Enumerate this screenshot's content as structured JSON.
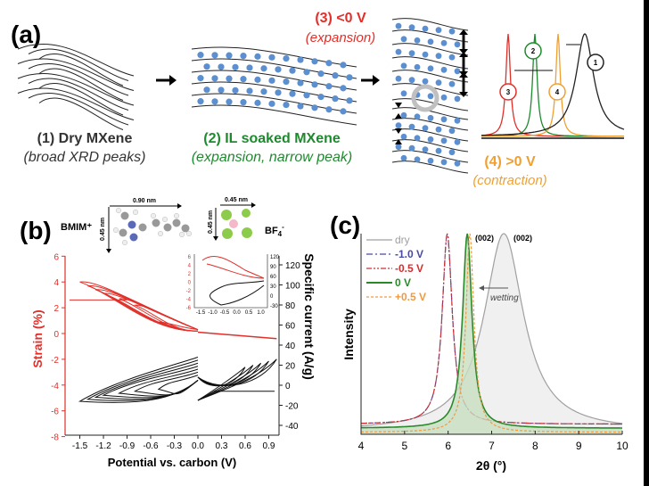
{
  "panel_a": {
    "label": "(a)",
    "step1": {
      "title": "(1) Dry MXene",
      "subtitle": "(broad XRD peaks)",
      "color": "#333333"
    },
    "step2": {
      "title": "(2) IL soaked MXene",
      "subtitle": "(expansion, narrow peak)",
      "color": "#1e8a2e"
    },
    "step3": {
      "title": "(3) <0 V",
      "subtitle": "(expansion)",
      "color": "#e0302a"
    },
    "step4": {
      "title": "(4) >0 V",
      "subtitle": "(contraction)",
      "color": "#f0a030"
    },
    "peak_markers": [
      "1",
      "2",
      "3",
      "4"
    ],
    "ion_color": "#5b8fcf"
  },
  "panel_b": {
    "label": "(b)",
    "cation": "BMIM⁺",
    "anion": "BF",
    "anion_sub": "4",
    "anion_sup": "-",
    "dim_cation_w": "0.90 nm",
    "dim_cation_h": "0.45 nm",
    "dim_anion_w": "0.45 nm",
    "dim_anion_h": "0.45 nm"
  },
  "panel_c": {
    "label": "(c)",
    "annotation": "wetting",
    "peak_label_1": "(002)",
    "peak_label_2": "(002)"
  },
  "chart_data": [
    {
      "type": "line",
      "xlabel": "Potential vs. carbon (V)",
      "ylabel": "Strain (%)",
      "y2label": "Specific current (A/g)",
      "xlim": [
        -1.75,
        1.05
      ],
      "ylim": [
        -8,
        6
      ],
      "y2lim": [
        -50,
        130
      ],
      "xticks": [
        "-1.5",
        "-1.2",
        "-0.9",
        "-0.6",
        "-0.3",
        "0.0",
        "0.3",
        "0.6",
        "0.9"
      ],
      "yticks": [
        "6",
        "4",
        "2",
        "0",
        "-2",
        "-4",
        "-6",
        "-8"
      ],
      "y2ticks": [
        "120",
        "100",
        "80",
        "60",
        "40",
        "20",
        "0",
        "-20",
        "-40"
      ],
      "strain_color": "#e0302a",
      "current_color": "#111111",
      "negative_vertex_potentials": [
        -1.5,
        -1.4,
        -1.3,
        -1.2,
        -1.0,
        -0.8,
        -0.5
      ],
      "negative_max_strain": [
        4.0,
        3.7,
        3.4,
        3.1,
        2.7,
        2.2,
        0.9
      ],
      "positive_vertex_potentials": [
        0.6,
        0.7,
        0.8,
        0.9,
        1.0
      ],
      "positive_min_strain": -0.4,
      "inset": {
        "xticks": [
          "-1.5",
          "-1.0",
          "-0.5",
          "0.0",
          "0.5",
          "1.0"
        ],
        "yticks": [
          "6",
          "4",
          "2",
          "0",
          "-2",
          "-4",
          "-6"
        ],
        "y2ticks": [
          "120",
          "90",
          "60",
          "30",
          "0",
          "-30"
        ]
      }
    },
    {
      "type": "line",
      "xlabel": "2θ (°)",
      "ylabel": "Intensity",
      "xlim": [
        4,
        10
      ],
      "xticks": [
        "4",
        "5",
        "6",
        "7",
        "8",
        "9",
        "10"
      ],
      "legend_position": "top-left",
      "series": [
        {
          "name": "dry",
          "peak": 7.28,
          "width": 0.55,
          "color": "#a0a0a0",
          "style": "solid"
        },
        {
          "name": "-1.0 V",
          "peak": 5.98,
          "width": 0.14,
          "color": "#4a4aa0",
          "style": "dashdot"
        },
        {
          "name": "-0.5 V",
          "peak": 5.98,
          "width": 0.14,
          "color": "#d03030",
          "style": "dashdotdot"
        },
        {
          "name": "0 V",
          "peak": 6.44,
          "width": 0.13,
          "color": "#2a8a2a",
          "style": "solid"
        },
        {
          "name": "+0.5 V",
          "peak": 6.5,
          "width": 0.11,
          "color": "#f09a40",
          "style": "dash"
        }
      ]
    }
  ]
}
